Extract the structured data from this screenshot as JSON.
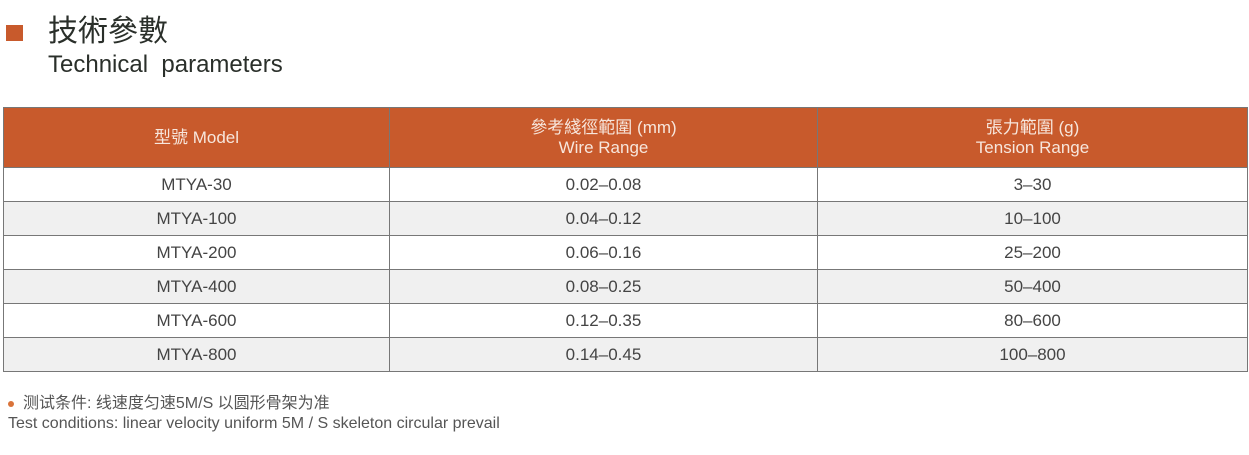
{
  "title_cn": "技術參數",
  "title_en": "Technical  parameters",
  "accent_color": "#c85a2c",
  "table": {
    "headers": [
      {
        "cn": "型號 Model",
        "en": ""
      },
      {
        "cn": "參考綫徑範圍 (mm)",
        "en": "Wire Range"
      },
      {
        "cn": "張力範圍 (g)",
        "en": "Tension Range"
      }
    ],
    "rows": [
      [
        "MTYA-30",
        "0.02–0.08",
        "3–30"
      ],
      [
        "MTYA-100",
        "0.04–0.12",
        "10–100"
      ],
      [
        "MTYA-200",
        "0.06–0.16",
        "25–200"
      ],
      [
        "MTYA-400",
        "0.08–0.25",
        "50–400"
      ],
      [
        "MTYA-600",
        "0.12–0.35",
        "80–600"
      ],
      [
        "MTYA-800",
        "0.14–0.45",
        "100–800"
      ]
    ]
  },
  "note": {
    "cn": "测试条件: 线速度匀速5M/S 以圆形骨架为准",
    "en": "Test conditions: linear velocity uniform 5M / S skeleton circular prevail"
  }
}
